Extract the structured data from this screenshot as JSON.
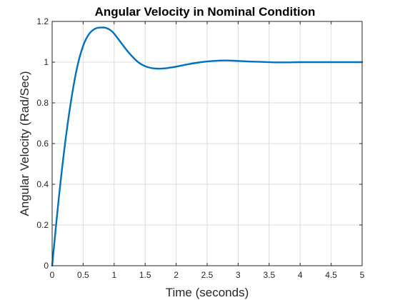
{
  "chart_data": {
    "type": "line",
    "title": "Angular Velocity in Nominal Condition",
    "xlabel": "Time (seconds)",
    "ylabel": "Angular Velocity (Rad/Sec)",
    "xlim": [
      0,
      5
    ],
    "ylim": [
      0,
      1.2
    ],
    "xticks": [
      0,
      0.5,
      1,
      1.5,
      2,
      2.5,
      3,
      3.5,
      4,
      4.5,
      5
    ],
    "xtick_labels": [
      "0",
      "0.5",
      "1",
      "1.5",
      "2",
      "2.5",
      "3",
      "3.5",
      "4",
      "4.5",
      "5"
    ],
    "yticks": [
      0,
      0.2,
      0.4,
      0.6,
      0.8,
      1,
      1.2
    ],
    "ytick_labels": [
      "0",
      "0.2",
      "0.4",
      "0.6",
      "0.8",
      "1",
      "1.2"
    ],
    "grid": true,
    "series": [
      {
        "color": "#0072bd",
        "x": [
          0,
          0.1,
          0.2,
          0.3,
          0.4,
          0.5,
          0.6,
          0.7,
          0.8,
          0.87,
          0.95,
          1.0,
          1.1,
          1.2,
          1.3,
          1.4,
          1.5,
          1.6,
          1.7,
          1.8,
          1.9,
          2.0,
          2.2,
          2.4,
          2.6,
          2.8,
          3.0,
          3.2,
          3.4,
          3.6,
          3.8,
          4.0,
          4.5,
          5.0
        ],
        "y": [
          0,
          0.31,
          0.58,
          0.8,
          0.97,
          1.08,
          1.14,
          1.165,
          1.17,
          1.168,
          1.155,
          1.14,
          1.1,
          1.06,
          1.025,
          0.997,
          0.98,
          0.971,
          0.968,
          0.969,
          0.973,
          0.978,
          0.99,
          1.0,
          1.006,
          1.008,
          1.006,
          1.003,
          1.001,
          0.999,
          0.999,
          1.0,
          1.0,
          1.0
        ]
      }
    ]
  }
}
